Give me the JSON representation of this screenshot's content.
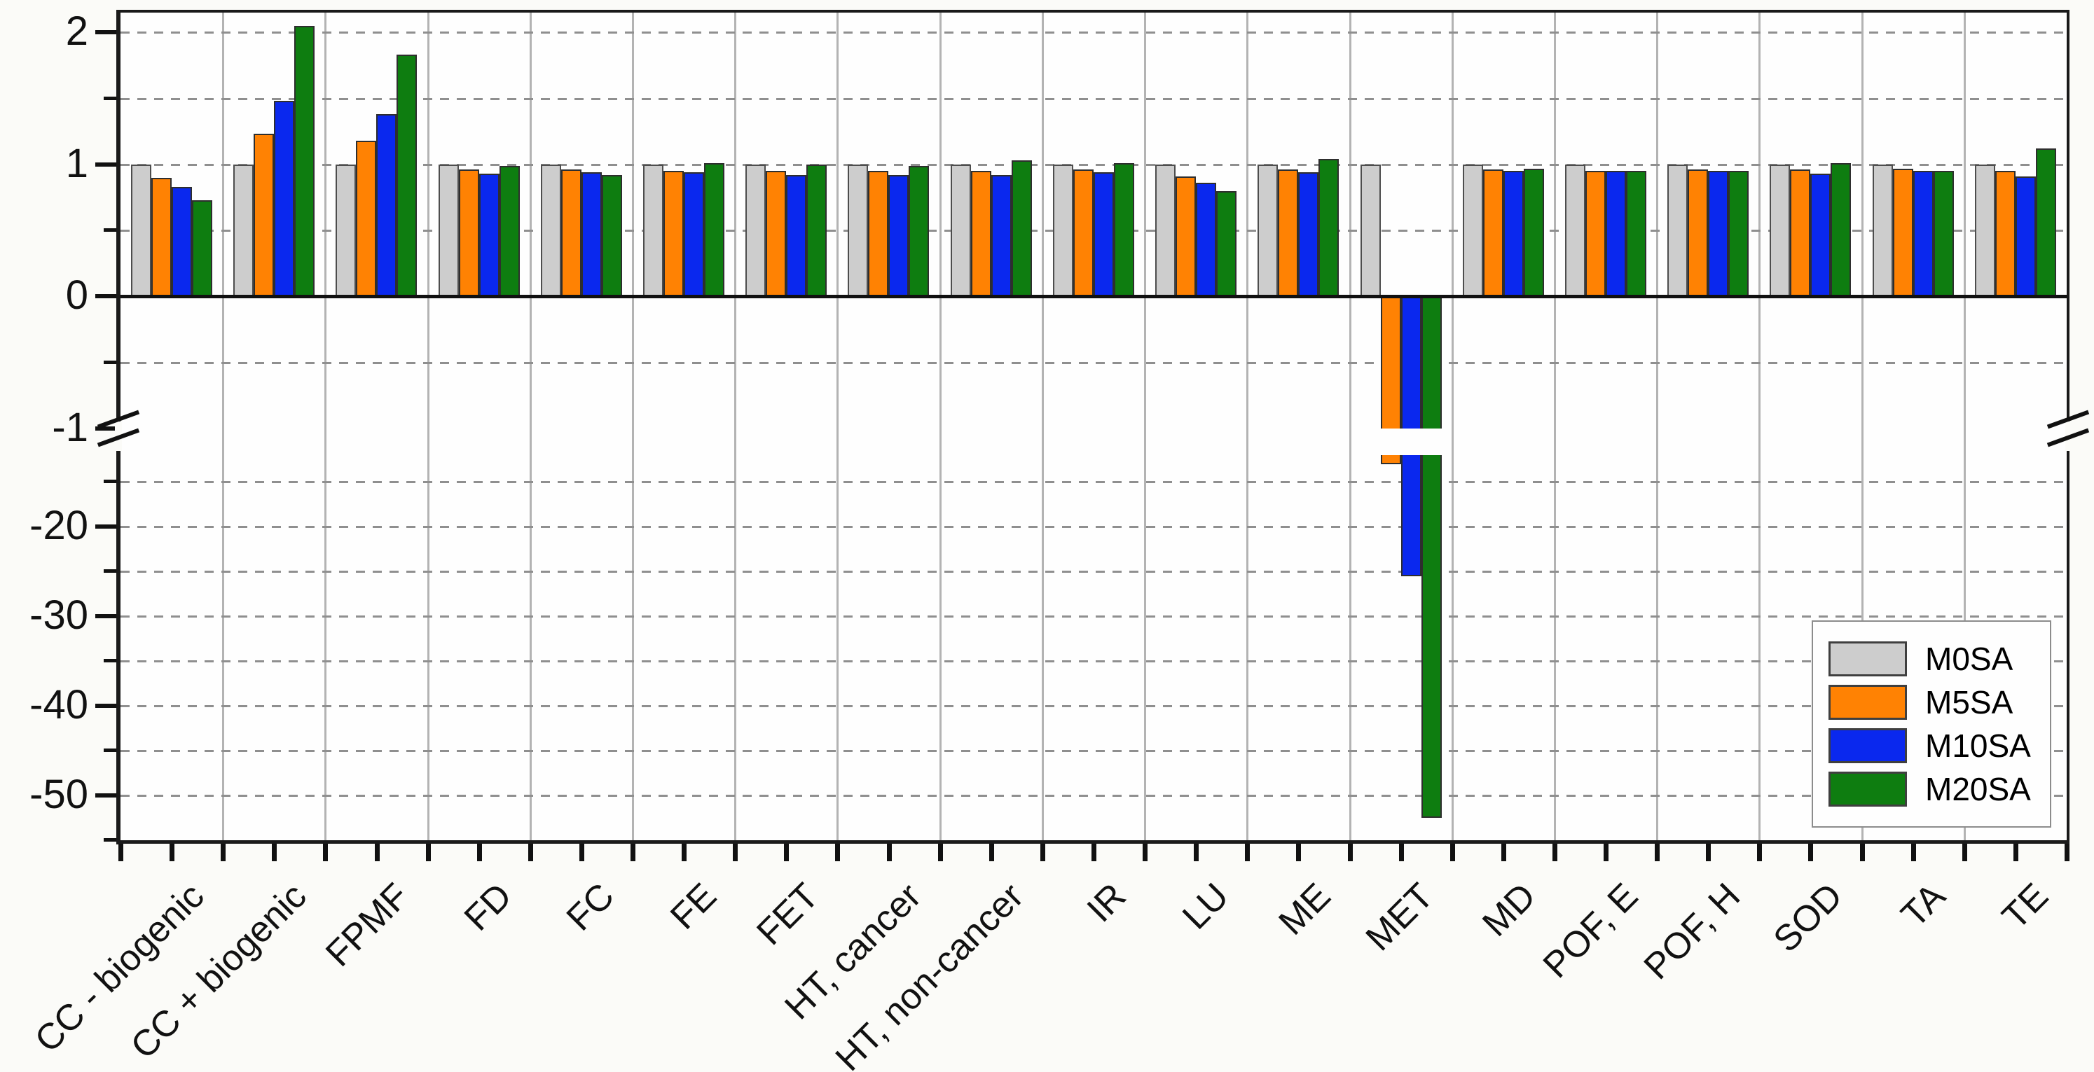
{
  "chart_data": {
    "type": "bar",
    "title": "",
    "xlabel": "",
    "ylabel": "",
    "categories": [
      "CC - biogenic",
      "CC + biogenic",
      "FPMF",
      "FD",
      "FC",
      "FE",
      "FET",
      "HT, cancer",
      "HT, non-cancer",
      "IR",
      "LU",
      "ME",
      "MET",
      "MD",
      "POF, E",
      "POF, H",
      "SOD",
      "TA",
      "TE"
    ],
    "series": [
      {
        "name": "M0SA",
        "color": "#cdcdcd",
        "border": "#4d4d4d",
        "values": [
          1.0,
          1.0,
          1.0,
          1.0,
          1.0,
          1.0,
          1.0,
          1.0,
          1.0,
          1.0,
          1.0,
          1.0,
          1.0,
          1.0,
          1.0,
          1.0,
          1.0,
          1.0,
          1.0
        ]
      },
      {
        "name": "M5SA",
        "color": "#ff8203",
        "border": "#2e2e2e",
        "values": [
          0.9,
          1.23,
          1.18,
          0.96,
          0.96,
          0.95,
          0.95,
          0.95,
          0.95,
          0.96,
          0.91,
          0.96,
          -13.0,
          0.96,
          0.95,
          0.96,
          0.96,
          0.97,
          0.95
        ]
      },
      {
        "name": "M10SA",
        "color": "#0a28ee",
        "border": "#2e2e2e",
        "values": [
          0.83,
          1.48,
          1.38,
          0.93,
          0.94,
          0.94,
          0.92,
          0.92,
          0.92,
          0.94,
          0.86,
          0.94,
          -25.5,
          0.95,
          0.95,
          0.95,
          0.93,
          0.95,
          0.91
        ]
      },
      {
        "name": "M20SA",
        "color": "#0e7d10",
        "border": "#2e2e2e",
        "values": [
          0.73,
          2.05,
          1.83,
          0.99,
          0.92,
          1.01,
          1.0,
          0.99,
          1.03,
          1.01,
          0.8,
          1.04,
          -52.5,
          0.97,
          0.95,
          0.95,
          1.01,
          0.95,
          1.12
        ]
      }
    ],
    "y_axis": {
      "broken": true,
      "upper": {
        "range": [
          -1,
          2.15
        ],
        "major_ticks": [
          {
            "v": 2,
            "label": "2"
          },
          {
            "v": 1,
            "label": "1"
          },
          {
            "v": 0,
            "label": "0"
          },
          {
            "v": -1,
            "label": "-1"
          }
        ],
        "minor_ticks": [
          1.5,
          0.5,
          -0.5
        ],
        "gridlines": [
          2,
          1.5,
          1,
          0.5,
          -0.5
        ]
      },
      "lower": {
        "range": [
          -55,
          -12
        ],
        "major_ticks": [
          {
            "v": -20,
            "label": "-20"
          },
          {
            "v": -30,
            "label": "-30"
          },
          {
            "v": -40,
            "label": "-40"
          },
          {
            "v": -50,
            "label": "-50"
          }
        ],
        "minor_ticks": [
          -15,
          -25,
          -35,
          -45,
          -55
        ],
        "gridlines": [
          -15,
          -20,
          -25,
          -30,
          -35,
          -40,
          -45,
          -50
        ]
      }
    },
    "legend": {
      "position": "bottom-right",
      "entries": [
        "M0SA",
        "M5SA",
        "M10SA",
        "M20SA"
      ]
    },
    "grid": {
      "vertical_separators": true,
      "horizontal_dashed": true
    }
  }
}
